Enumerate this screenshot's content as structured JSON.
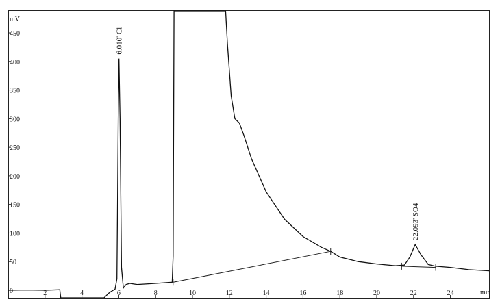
{
  "chart_data": {
    "type": "line",
    "xlabel": "min",
    "ylabel": "mV",
    "xlim": [
      0,
      26.1
    ],
    "ylim": [
      -14,
      490
    ],
    "x_ticks": [
      2,
      4,
      6,
      8,
      10,
      12,
      14,
      16,
      18,
      20,
      22,
      24
    ],
    "y_ticks": [
      0,
      50,
      100,
      150,
      200,
      250,
      300,
      350,
      400,
      450
    ],
    "grid": false,
    "series": [
      {
        "points": [
          [
            0,
            0
          ],
          [
            1,
            0.5
          ],
          [
            2,
            0
          ],
          [
            2.8,
            1
          ],
          [
            2.85,
            -14
          ],
          [
            5.2,
            -14
          ],
          [
            5.5,
            -4
          ],
          [
            5.8,
            2
          ],
          [
            5.9,
            20
          ],
          [
            5.97,
            300
          ],
          [
            6.01,
            405
          ],
          [
            6.07,
            300
          ],
          [
            6.15,
            40
          ],
          [
            6.25,
            4
          ],
          [
            6.4,
            10
          ],
          [
            6.6,
            12
          ],
          [
            7,
            10
          ],
          [
            8,
            12
          ],
          [
            8.9,
            14
          ],
          [
            8.95,
            60
          ],
          [
            9.0,
            490
          ],
          [
            11.8,
            490
          ],
          [
            11.9,
            430
          ],
          [
            12.1,
            340
          ],
          [
            12.3,
            300
          ],
          [
            12.55,
            292
          ],
          [
            12.8,
            270
          ],
          [
            13.2,
            230
          ],
          [
            14,
            172
          ],
          [
            15,
            124
          ],
          [
            16,
            94
          ],
          [
            17,
            75
          ],
          [
            17.5,
            68
          ],
          [
            18,
            58
          ],
          [
            19,
            50
          ],
          [
            20,
            46
          ],
          [
            21,
            43
          ],
          [
            21.5,
            44
          ],
          [
            21.8,
            58
          ],
          [
            22.09,
            80
          ],
          [
            22.4,
            62
          ],
          [
            22.8,
            45
          ],
          [
            23.2,
            42
          ],
          [
            24,
            40
          ],
          [
            25,
            36
          ],
          [
            26.1,
            34
          ]
        ]
      }
    ],
    "baselines": [
      [
        [
          8.95,
          14
        ],
        [
          17.5,
          68
        ]
      ],
      [
        [
          21.35,
          42
        ],
        [
          23.2,
          40
        ]
      ]
    ],
    "annotations": [
      {
        "x": 6.01,
        "y": 405,
        "text": "6.010' Cl"
      },
      {
        "x": 22.09,
        "y": 80,
        "text": "22.093' SO4"
      }
    ]
  }
}
